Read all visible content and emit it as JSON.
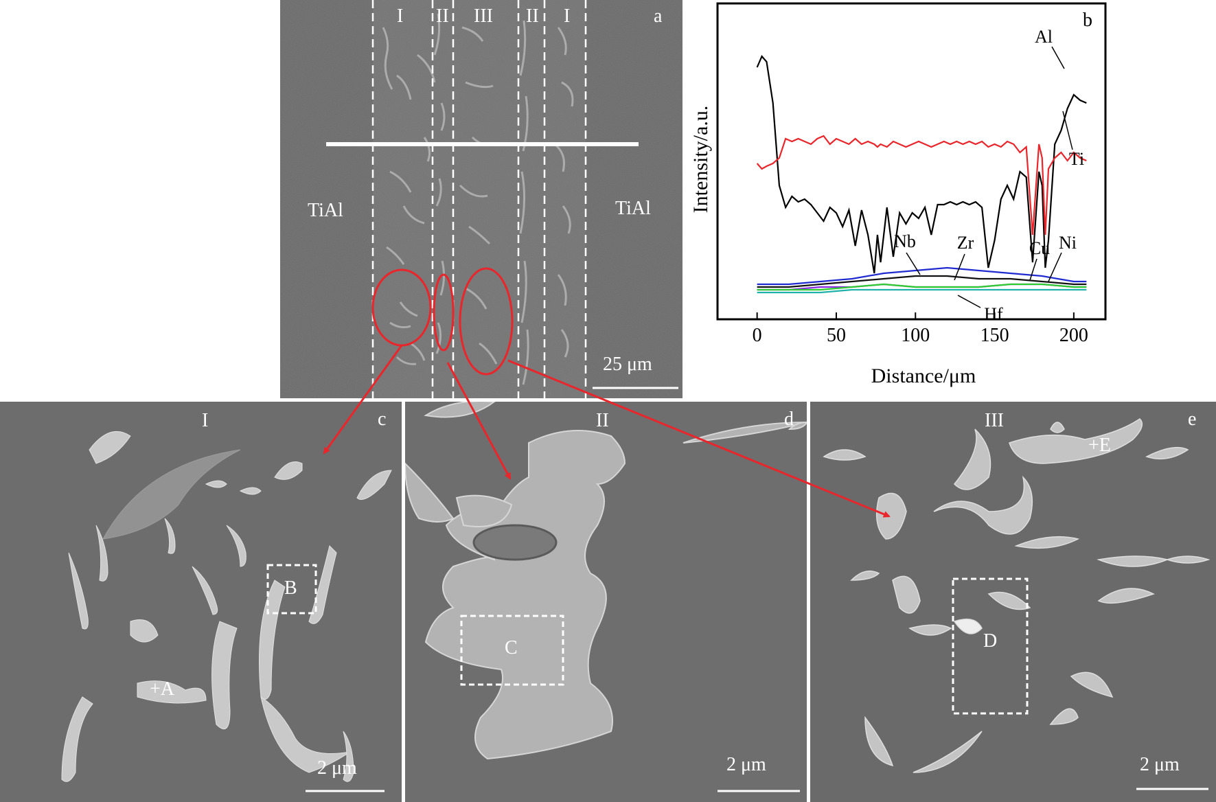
{
  "panel_a": {
    "letter": "a",
    "zones": [
      "I",
      "II",
      "III",
      "II",
      "I"
    ],
    "left_material": "TiAl",
    "right_material": "TiAl",
    "scale": "25 μm"
  },
  "panel_b": {
    "letter": "b"
  },
  "panel_c": {
    "letter": "c",
    "zone": "I",
    "point_label": "+A",
    "box_label": "B",
    "scale": "2 μm"
  },
  "panel_d": {
    "letter": "d",
    "zone": "II",
    "box_label": "C",
    "scale": "2 μm"
  },
  "panel_e": {
    "letter": "e",
    "zone": "III",
    "point_label": "+E",
    "box_label": "D",
    "scale": "2 μm"
  },
  "colors": {
    "annotation": "#e8262b",
    "al": "#000000",
    "ti": "#e8262b",
    "nb": "#1f2bd0",
    "zr": "#111111",
    "cu": "#8a2be2",
    "ni": "#2ecc2e",
    "hf": "#20b2aa"
  },
  "chart_data": {
    "type": "line",
    "xlabel": "Distance/μm",
    "ylabel": "Intensity/a.u.",
    "xlim": [
      -25,
      220
    ],
    "xticks": [
      0,
      50,
      100,
      150,
      200
    ],
    "grid": false,
    "series": [
      {
        "name": "Al",
        "x": [
          0,
          3,
          6,
          10,
          14,
          18,
          22,
          26,
          30,
          34,
          38,
          42,
          46,
          50,
          54,
          58,
          62,
          66,
          70,
          74,
          76,
          78,
          82,
          86,
          90,
          94,
          98,
          102,
          106,
          110,
          114,
          118,
          122,
          126,
          130,
          134,
          138,
          142,
          146,
          150,
          154,
          158,
          162,
          166,
          170,
          174,
          178,
          180,
          182,
          184,
          188,
          192,
          196,
          200,
          204,
          208
        ],
        "values": [
          0.83,
          0.87,
          0.85,
          0.7,
          0.4,
          0.32,
          0.36,
          0.34,
          0.35,
          0.33,
          0.3,
          0.27,
          0.32,
          0.3,
          0.25,
          0.31,
          0.18,
          0.31,
          0.22,
          0.08,
          0.22,
          0.12,
          0.32,
          0.14,
          0.3,
          0.26,
          0.3,
          0.28,
          0.32,
          0.22,
          0.33,
          0.33,
          0.34,
          0.33,
          0.34,
          0.33,
          0.34,
          0.32,
          0.1,
          0.2,
          0.35,
          0.4,
          0.35,
          0.45,
          0.43,
          0.12,
          0.45,
          0.4,
          0.1,
          0.2,
          0.55,
          0.6,
          0.68,
          0.73,
          0.71,
          0.7
        ]
      },
      {
        "name": "Ti",
        "x": [
          0,
          3,
          6,
          10,
          14,
          18,
          22,
          26,
          30,
          34,
          38,
          42,
          46,
          50,
          54,
          58,
          62,
          66,
          70,
          74,
          76,
          78,
          82,
          86,
          90,
          94,
          98,
          102,
          106,
          110,
          114,
          118,
          122,
          126,
          130,
          134,
          138,
          142,
          146,
          150,
          154,
          158,
          162,
          166,
          170,
          174,
          178,
          180,
          182,
          184,
          188,
          192,
          196,
          200,
          204,
          208
        ],
        "values": [
          0.48,
          0.46,
          0.47,
          0.48,
          0.5,
          0.57,
          0.56,
          0.57,
          0.56,
          0.55,
          0.57,
          0.58,
          0.55,
          0.57,
          0.56,
          0.55,
          0.57,
          0.55,
          0.56,
          0.55,
          0.54,
          0.55,
          0.54,
          0.56,
          0.55,
          0.54,
          0.55,
          0.56,
          0.55,
          0.54,
          0.55,
          0.56,
          0.55,
          0.56,
          0.55,
          0.56,
          0.55,
          0.56,
          0.54,
          0.55,
          0.54,
          0.56,
          0.55,
          0.52,
          0.54,
          0.22,
          0.55,
          0.5,
          0.22,
          0.46,
          0.5,
          0.52,
          0.49,
          0.52,
          0.5,
          0.49
        ]
      },
      {
        "name": "Nb",
        "x": [
          0,
          20,
          40,
          60,
          80,
          100,
          120,
          140,
          160,
          180,
          200,
          208
        ],
        "values": [
          0.04,
          0.04,
          0.05,
          0.06,
          0.08,
          0.09,
          0.1,
          0.09,
          0.08,
          0.07,
          0.05,
          0.05
        ]
      },
      {
        "name": "Zr",
        "x": [
          0,
          20,
          40,
          60,
          80,
          100,
          120,
          140,
          160,
          180,
          200,
          208
        ],
        "values": [
          0.03,
          0.03,
          0.04,
          0.05,
          0.06,
          0.07,
          0.07,
          0.06,
          0.06,
          0.05,
          0.04,
          0.04
        ]
      },
      {
        "name": "Cu",
        "x": [
          0,
          20,
          40,
          60,
          80,
          100,
          120,
          140,
          160,
          180,
          200,
          208
        ],
        "values": [
          0.02,
          0.02,
          0.03,
          0.03,
          0.04,
          0.03,
          0.03,
          0.03,
          0.04,
          0.04,
          0.03,
          0.03
        ]
      },
      {
        "name": "Ni",
        "x": [
          0,
          20,
          40,
          60,
          80,
          100,
          120,
          140,
          160,
          180,
          200,
          208
        ],
        "values": [
          0.02,
          0.02,
          0.02,
          0.03,
          0.04,
          0.03,
          0.03,
          0.03,
          0.04,
          0.04,
          0.03,
          0.03
        ]
      },
      {
        "name": "Hf",
        "x": [
          0,
          20,
          40,
          60,
          80,
          100,
          120,
          140,
          160,
          180,
          200,
          208
        ],
        "values": [
          0.01,
          0.01,
          0.01,
          0.02,
          0.02,
          0.02,
          0.02,
          0.02,
          0.02,
          0.02,
          0.02,
          0.02
        ]
      }
    ]
  }
}
